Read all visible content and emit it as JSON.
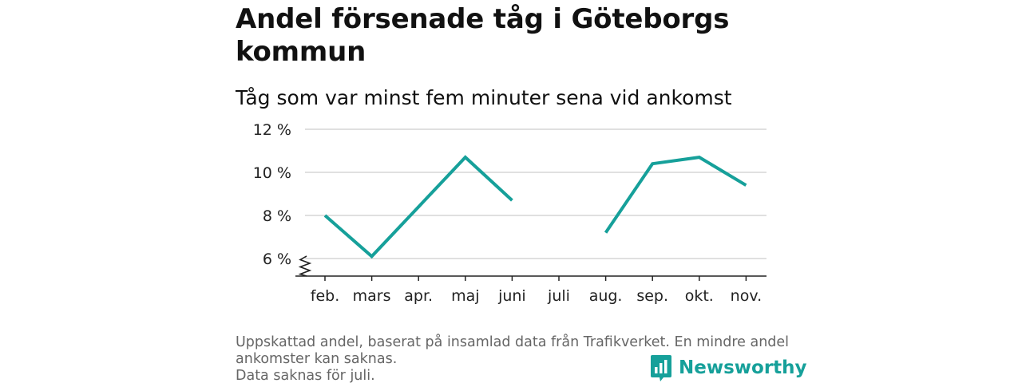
{
  "title": "Andel försenade tåg i Göteborgs kommun",
  "subtitle": "Tåg som var minst fem minuter sena vid ankomst",
  "footnote": {
    "line1": "Uppskattad andel, baserat på insamlad data från Trafikverket. En mindre andel",
    "line2": "ankomster kan saknas.",
    "line3": "Data saknas för juli."
  },
  "brand": {
    "name": "Newsworthy",
    "icon": "newsworthy-logo-icon",
    "color": "#16a09a"
  },
  "chart_data": {
    "type": "line",
    "categories": [
      "feb.",
      "mars",
      "apr.",
      "maj",
      "juni",
      "juli",
      "aug.",
      "sep.",
      "okt.",
      "nov."
    ],
    "series": [
      {
        "values": [
          8.0,
          6.1,
          8.4,
          10.7,
          8.7,
          null,
          7.2,
          10.4,
          10.7,
          9.4
        ],
        "color": "#16a09a"
      }
    ],
    "yticks": [
      6,
      8,
      10,
      12
    ],
    "ytick_labels": [
      "6 %",
      "8 %",
      "10 %",
      "12 %"
    ],
    "ylim": [
      5.3,
      12
    ],
    "y_axis_break": true,
    "grid": true,
    "xlabel": "",
    "ylabel": ""
  }
}
